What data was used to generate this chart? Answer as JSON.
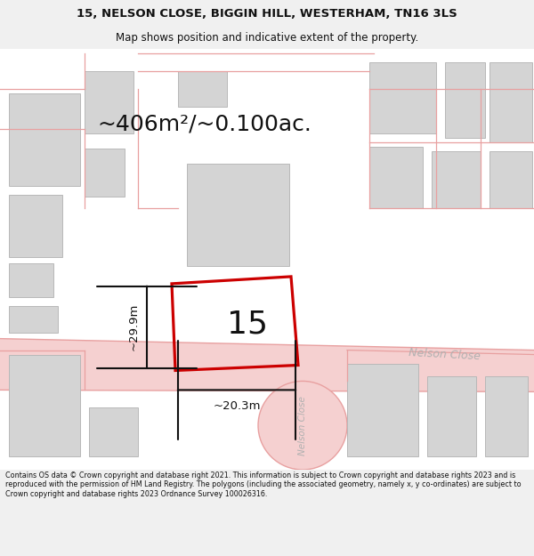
{
  "title_line1": "15, NELSON CLOSE, BIGGIN HILL, WESTERHAM, TN16 3LS",
  "title_line2": "Map shows position and indicative extent of the property.",
  "area_text": "~406m²/~0.100ac.",
  "label_15": "15",
  "dim_height": "~29.9m",
  "dim_width": "~20.3m",
  "nelson_close_diag": "Nelson Close",
  "nelson_close_vert": "Nelson Close",
  "footer_text": "Contains OS data © Crown copyright and database right 2021. This information is subject to Crown copyright and database rights 2023 and is reproduced with the permission of HM Land Registry. The polygons (including the associated geometry, namely x, y co-ordinates) are subject to Crown copyright and database rights 2023 Ordnance Survey 100026316.",
  "bg_color": "#f0f0f0",
  "map_bg": "#ffffff",
  "road_fill": "#f5d0d0",
  "road_edge": "#e8a0a0",
  "building_fill": "#d4d4d4",
  "building_edge": "#b8b8b8",
  "plot_color": "#cc0000",
  "dim_color": "#111111",
  "text_color": "#111111",
  "road_label_color": "#b0b0b0"
}
